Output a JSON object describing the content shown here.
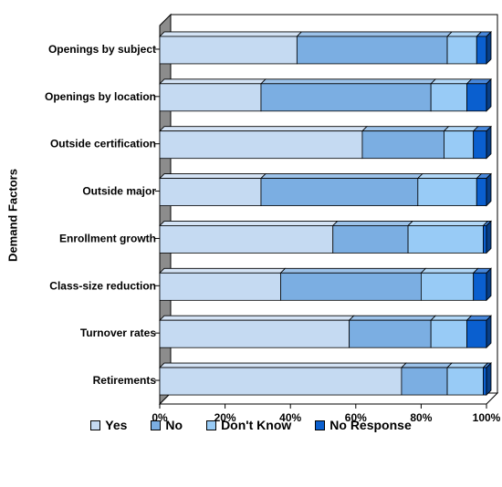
{
  "chart_data": {
    "type": "bar",
    "orientation": "horizontal",
    "stacked": true,
    "percent": true,
    "categories": [
      "Openings by subject",
      "Openings by location",
      "Outside certification",
      "Outside major",
      "Enrollment growth",
      "Class-size reduction",
      "Turnover rates",
      "Retirements"
    ],
    "series": [
      {
        "name": "Yes",
        "color": "#c5daf2",
        "values": [
          42,
          31,
          62,
          31,
          53,
          37,
          58,
          74
        ]
      },
      {
        "name": "No",
        "color": "#7baee2",
        "values": [
          46,
          52,
          25,
          48,
          23,
          43,
          25,
          14
        ]
      },
      {
        "name": "Don't Know",
        "color": "#98cbf6",
        "values": [
          9,
          11,
          9,
          18,
          23,
          16,
          11,
          11
        ]
      },
      {
        "name": "No Response",
        "color": "#0a5fcf",
        "values": [
          3,
          6,
          4,
          3,
          1,
          4,
          6,
          1
        ]
      }
    ],
    "title": "",
    "xlabel": "",
    "ylabel": "Demand Factors",
    "xlim": [
      0,
      100
    ],
    "xticks": [
      "0%",
      "20%",
      "40%",
      "60%",
      "80%",
      "100%"
    ],
    "grid": false,
    "legend_position": "bottom"
  }
}
